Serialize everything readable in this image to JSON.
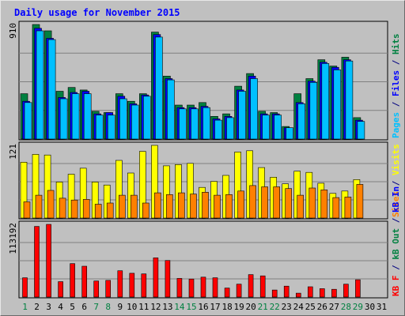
{
  "chart_data": {
    "type": "bar",
    "title": "Daily usage for November 2015",
    "categories": [
      "1",
      "2",
      "3",
      "4",
      "5",
      "6",
      "7",
      "8",
      "9",
      "10",
      "11",
      "12",
      "13",
      "14",
      "15",
      "16",
      "17",
      "18",
      "19",
      "20",
      "21",
      "22",
      "23",
      "24",
      "25",
      "26",
      "27",
      "28",
      "29",
      "30",
      "31"
    ],
    "weekend_days": [
      "1",
      "7",
      "8",
      "14",
      "15",
      "21",
      "22",
      "28",
      "29"
    ],
    "panels": [
      {
        "name": "hits-files-pages",
        "ymax_label": "910",
        "ymax": 910,
        "right_labels": [
          {
            "text": "Pages",
            "color": "#00c0ff"
          },
          {
            "text": " / ",
            "color": "#000080"
          },
          {
            "text": "Files",
            "color": "#0000ff"
          },
          {
            "text": " / ",
            "color": "#000080"
          },
          {
            "text": "Hits",
            "color": "#008040"
          }
        ],
        "series": [
          {
            "name": "Hits",
            "color": "#008040",
            "values": [
              360,
              910,
              860,
              380,
              410,
              390,
              220,
              210,
              360,
              300,
              360,
              850,
              500,
              270,
              270,
              290,
              180,
              200,
              420,
              520,
              220,
              210,
              100,
              360,
              480,
              630,
              580,
              650,
              170,
              0,
              0
            ]
          },
          {
            "name": "Files",
            "color": "#0000ff",
            "values": [
              300,
              880,
              800,
              330,
              370,
              380,
              200,
              210,
              340,
              280,
              350,
              830,
              480,
              250,
              250,
              260,
              160,
              180,
              390,
              500,
              200,
              200,
              90,
              290,
              460,
              610,
              570,
              630,
              150,
              0,
              0
            ]
          },
          {
            "name": "Pages",
            "color": "#00c0ff",
            "values": [
              290,
              860,
              790,
              320,
              360,
              360,
              190,
              190,
              320,
              270,
              340,
              810,
              470,
              240,
              240,
              250,
              150,
              170,
              380,
              480,
              190,
              190,
              90,
              280,
              450,
              600,
              550,
              620,
              140,
              0,
              0
            ]
          }
        ]
      },
      {
        "name": "visits-sites",
        "ymax_label": "121",
        "ymax": 121,
        "right_labels": [
          {
            "text": "Sites",
            "color": "#ff8000"
          },
          {
            "text": " / ",
            "color": "#000080"
          },
          {
            "text": "Visits",
            "color": "#ffff00"
          }
        ],
        "series": [
          {
            "name": "Visits",
            "color": "#ffff00",
            "values": [
              93,
              106,
              105,
              60,
              73,
              83,
              60,
              55,
              96,
              75,
              111,
              121,
              87,
              89,
              91,
              51,
              61,
              71,
              110,
              112,
              84,
              68,
              57,
              78,
              76,
              58,
              41,
              45,
              64,
              0,
              0
            ]
          },
          {
            "name": "Sites",
            "color": "#ff8000",
            "values": [
              27,
              38,
              46,
              33,
              30,
              31,
              23,
              25,
              38,
              38,
              25,
              42,
              39,
              42,
              40,
              43,
              38,
              39,
              45,
              54,
              52,
              52,
              49,
              38,
              50,
              47,
              34,
              35,
              56,
              0,
              0
            ]
          }
        ]
      },
      {
        "name": "kbytes",
        "ymax_label": "113192",
        "ymax": 113192,
        "right_labels": [
          {
            "text": "KB F",
            "color": "#ff0000"
          },
          {
            "text": " / ",
            "color": "#000080"
          },
          {
            "text": "kB Out",
            "color": "#008040"
          },
          {
            "text": " / ",
            "color": "#000080"
          },
          {
            "text": "kB In",
            "color": "#0000ff"
          }
        ],
        "series": [
          {
            "name": "KB F",
            "color": "#ff0000",
            "values": [
              30000,
              110000,
              113192,
              24000,
              52000,
              48000,
              25000,
              26000,
              41000,
              37000,
              36000,
              61000,
              57000,
              29000,
              28000,
              31000,
              30000,
              14000,
              20000,
              35000,
              33000,
              11000,
              17000,
              6000,
              16000,
              13000,
              12000,
              20000,
              27000,
              0,
              0
            ]
          }
        ]
      }
    ]
  }
}
